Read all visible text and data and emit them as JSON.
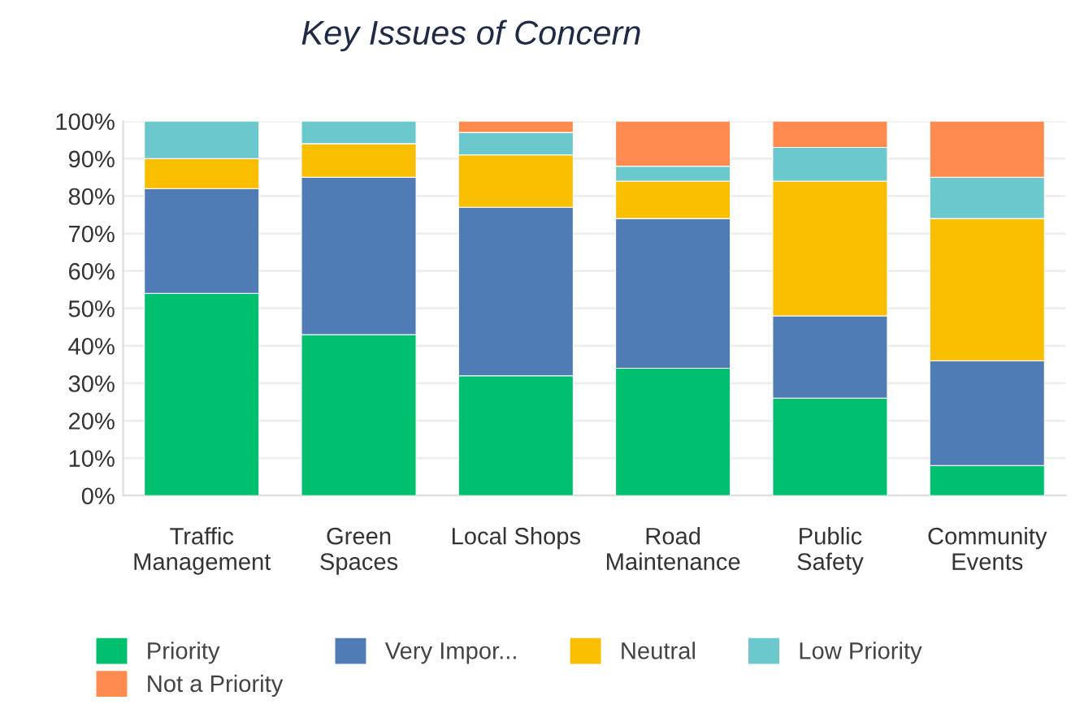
{
  "chart_data": {
    "type": "bar",
    "title": "Key Issues of Concern",
    "stacked": true,
    "categories": [
      "Traffic\nManagement",
      "Green\nSpaces",
      "Local Shops",
      "Road\nMaintenance",
      "Public\nSafety",
      "Community\nEvents"
    ],
    "series": [
      {
        "name": "Priority",
        "color": "#00bf6f",
        "values": [
          54,
          43,
          32,
          34,
          26,
          8
        ]
      },
      {
        "name": "Very Impor...",
        "color": "#507cb6",
        "values": [
          28,
          42,
          45,
          40,
          22,
          28
        ]
      },
      {
        "name": "Neutral",
        "color": "#f9be00",
        "values": [
          8,
          9,
          14,
          10,
          36,
          38
        ]
      },
      {
        "name": "Low Priority",
        "color": "#6bc8cd",
        "values": [
          10,
          6,
          6,
          4,
          9,
          11
        ]
      },
      {
        "name": "Not a Priority",
        "color": "#ff8b4f",
        "values": [
          0,
          0,
          3,
          12,
          7,
          15
        ]
      }
    ],
    "ylim": [
      0,
      100
    ],
    "yticks": [
      {
        "value": 0,
        "label": "0%"
      },
      {
        "value": 10,
        "label": "10%"
      },
      {
        "value": 20,
        "label": "20%"
      },
      {
        "value": 30,
        "label": "30%"
      },
      {
        "value": 40,
        "label": "40%"
      },
      {
        "value": 50,
        "label": "50%"
      },
      {
        "value": 60,
        "label": "60%"
      },
      {
        "value": 70,
        "label": "70%"
      },
      {
        "value": 80,
        "label": "80%"
      },
      {
        "value": 90,
        "label": "90%"
      },
      {
        "value": 100,
        "label": "100%"
      }
    ],
    "grid": "y",
    "legend": "bottom"
  }
}
